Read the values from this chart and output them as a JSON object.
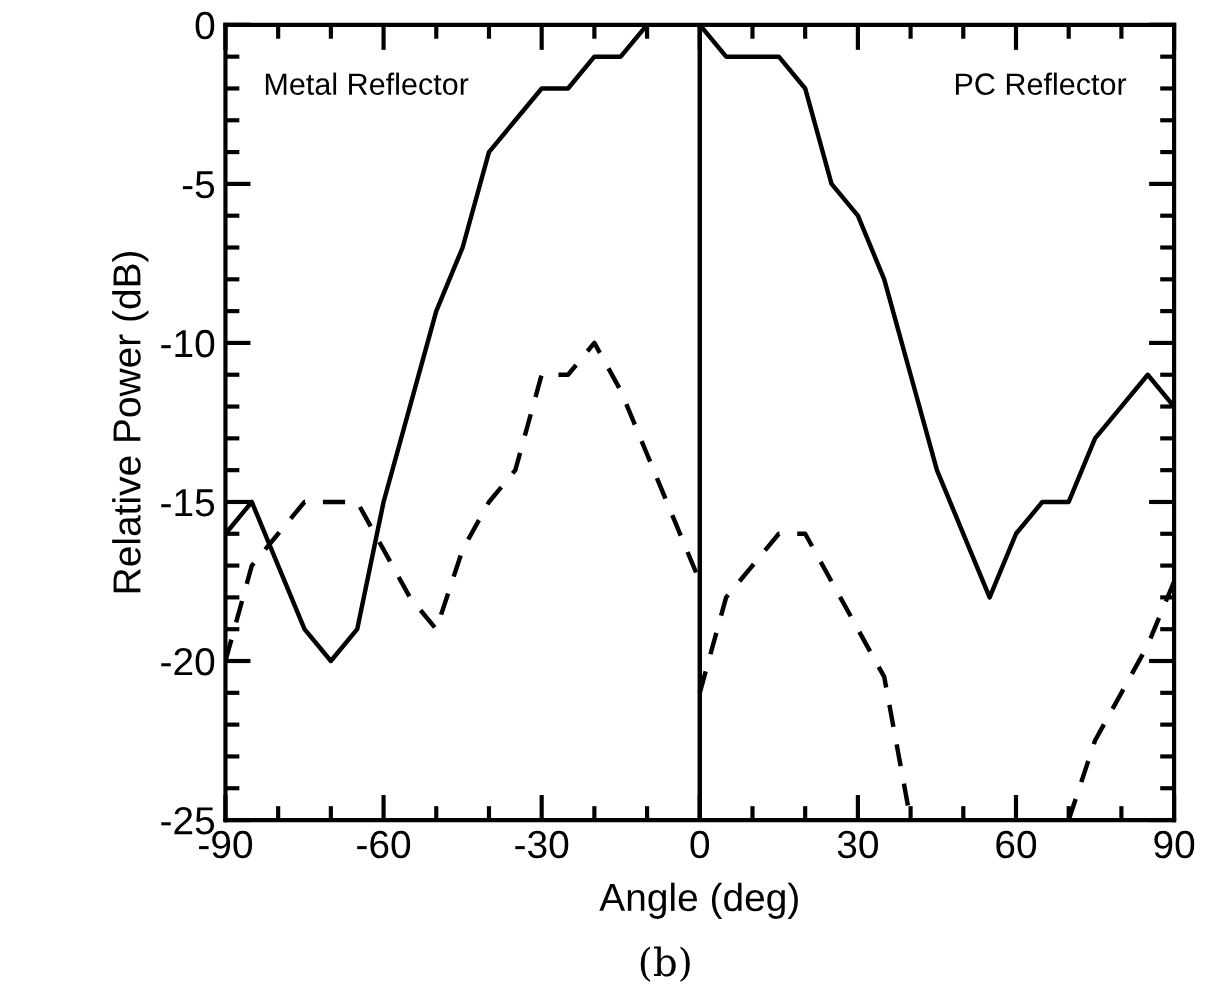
{
  "chart_data": {
    "type": "line",
    "xlabel": "Angle (deg)",
    "ylabel": "Relative Power (dB)",
    "xlim": [
      -90,
      90
    ],
    "xticks": [
      -90,
      -60,
      -30,
      0,
      30,
      60,
      90
    ],
    "ylim": [
      -25,
      0
    ],
    "yticks": [
      -25,
      -20,
      -15,
      -10,
      -5,
      0
    ],
    "grid": false,
    "marker": "none",
    "series": [
      {
        "color": "#000000",
        "line_style": "solid",
        "x": [
          -90,
          -85,
          -80,
          -75,
          -70,
          -65,
          -60,
          -55,
          -50,
          -45,
          -40,
          -35,
          -30,
          -25,
          -20,
          -15,
          -10,
          -5,
          0,
          5,
          10,
          15,
          20,
          25,
          30,
          35,
          40,
          45,
          50,
          55,
          60,
          65,
          70,
          75,
          80,
          85,
          90
        ],
        "values": [
          -16,
          -15,
          -17,
          -19,
          -20,
          -19,
          -15,
          -12,
          -9,
          -7,
          -4,
          -3,
          -2,
          -2,
          -1,
          -1,
          0,
          0,
          0,
          -1,
          -1,
          -1,
          -2,
          -5,
          -6,
          -8,
          -11,
          -14,
          -16,
          -18,
          -16,
          -15,
          -15,
          -13,
          -12,
          -11,
          -12
        ]
      },
      {
        "color": "#000000",
        "line_style": "dashed",
        "x": [
          -90,
          -85,
          -80,
          -75,
          -70,
          -65,
          -60,
          -55,
          -50,
          -45,
          -40,
          -35,
          -30,
          -25,
          -20,
          -15,
          -10,
          -5,
          0
        ],
        "values": [
          -20,
          -17,
          -16,
          -15,
          -15,
          -15,
          -16.5,
          -18,
          -19,
          -16.5,
          -15,
          -14,
          -11,
          -11,
          -10,
          -11.5,
          -13.5,
          -15.5,
          -17.5
        ]
      },
      {
        "color": "#000000",
        "line_style": "dashed",
        "x": [
          0,
          5,
          10,
          15,
          20,
          25,
          30,
          35,
          40,
          45,
          50,
          55,
          60,
          65,
          70,
          75,
          80,
          85,
          90
        ],
        "values": [
          -21,
          -18,
          -17,
          -16,
          -16,
          -17.5,
          -19,
          -20.5,
          -25,
          null,
          null,
          null,
          null,
          null,
          -25,
          -22.5,
          -21,
          -19.5,
          -17.5
        ]
      }
    ],
    "ref_lines": [
      {
        "axis": "x",
        "value": 0,
        "color": "#000000",
        "line_style": "solid"
      }
    ],
    "annotations": [
      "Metal Reflector",
      "PC Reflector",
      "(b)"
    ]
  }
}
